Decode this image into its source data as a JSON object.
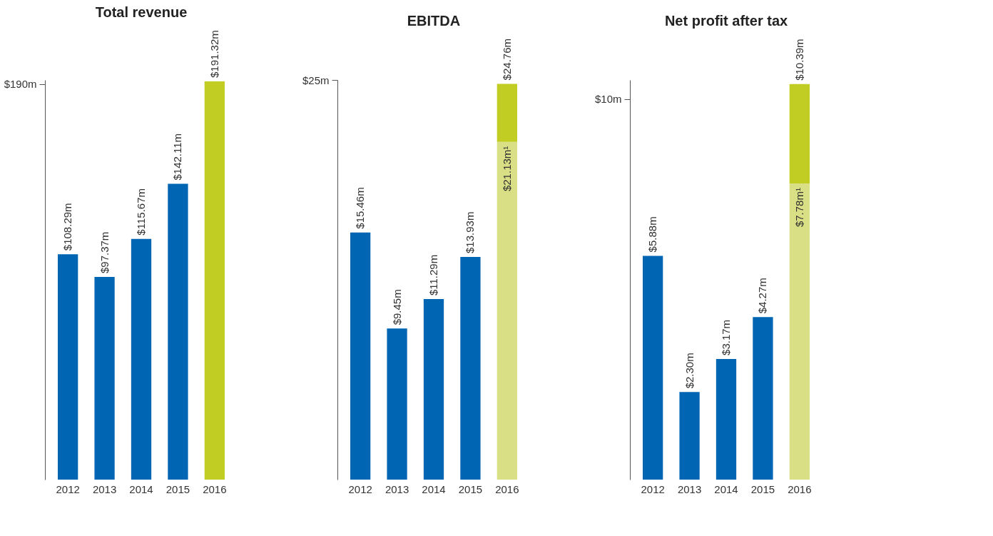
{
  "chart_data": [
    {
      "type": "bar",
      "title": "Total revenue",
      "categories": [
        "2012",
        "2013",
        "2014",
        "2015",
        "2016"
      ],
      "stacked": true,
      "series": [
        {
          "colors": [
            "#0066b3",
            "#0066b3",
            "#0066b3",
            "#0066b3",
            "#c2cd23"
          ],
          "values": [
            108.29,
            97.37,
            115.67,
            142.11,
            191.32
          ],
          "value_labels": [
            "$108.29m",
            "$97.37m",
            "$115.67m",
            "$142.11m",
            "$191.32m"
          ]
        }
      ],
      "ylim": [
        0,
        192
      ],
      "yticks": [
        {
          "value": 190,
          "label": "$190m"
        }
      ],
      "grid": false
    },
    {
      "type": "bar",
      "title": "EBITDA",
      "categories": [
        "2012",
        "2013",
        "2014",
        "2015",
        "2016"
      ],
      "stacked": true,
      "series": [
        {
          "colors": [
            "#0066b3",
            "#0066b3",
            "#0066b3",
            "#0066b3",
            "#d8df84"
          ],
          "values": [
            15.46,
            9.45,
            11.29,
            13.93,
            21.13
          ],
          "value_labels": [
            "$15.46m",
            "$9.45m",
            "$11.29m",
            "$13.93m",
            "$21.13m¹"
          ]
        },
        {
          "color": "#c2cd23",
          "values": [
            null,
            null,
            null,
            null,
            3.63
          ]
        }
      ],
      "totals": [
        null,
        null,
        null,
        null,
        "$24.76m"
      ],
      "ylim": [
        0,
        25
      ],
      "yticks": [
        {
          "value": 25,
          "label": "$25m"
        }
      ],
      "grid": false
    },
    {
      "type": "bar",
      "title": "Net profit after tax",
      "categories": [
        "2012",
        "2013",
        "2014",
        "2015",
        "2016"
      ],
      "stacked": true,
      "series": [
        {
          "colors": [
            "#0066b3",
            "#0066b3",
            "#0066b3",
            "#0066b3",
            "#d8df84"
          ],
          "values": [
            5.88,
            2.3,
            3.17,
            4.27,
            7.78
          ],
          "value_labels": [
            "$5.88m",
            "$2.30m",
            "$3.17m",
            "$4.27m",
            "$7.78m¹"
          ]
        },
        {
          "color": "#c2cd23",
          "values": [
            null,
            null,
            null,
            null,
            2.61
          ]
        }
      ],
      "totals": [
        null,
        null,
        null,
        null,
        "$10.39m"
      ],
      "ylim": [
        0,
        10.5
      ],
      "yticks": [
        {
          "value": 10,
          "label": "$10m"
        }
      ],
      "grid": false
    }
  ]
}
